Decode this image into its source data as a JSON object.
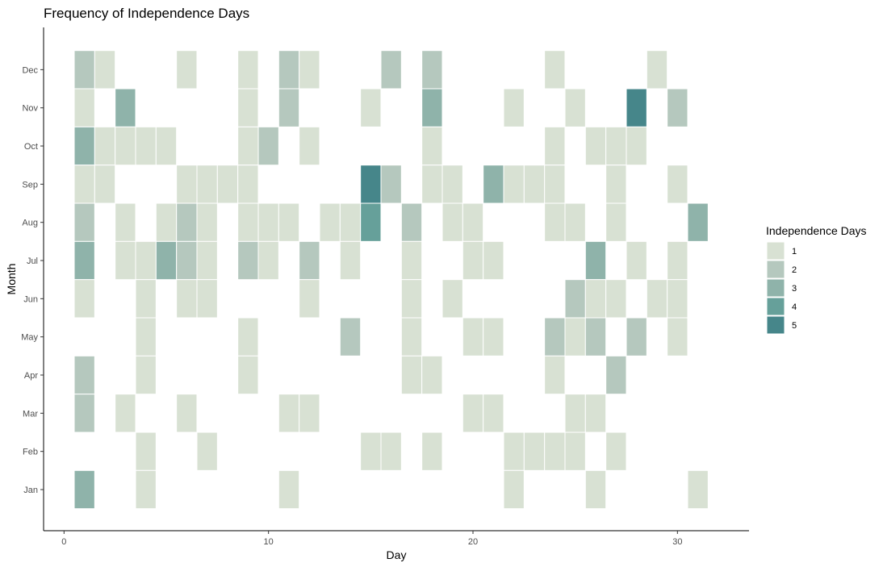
{
  "chart_data": {
    "type": "heatmap",
    "title": "Frequency of Independence Days",
    "xlabel": "Day",
    "ylabel": "Month",
    "xlim": [
      -1,
      33.5
    ],
    "x_ticks": [
      0,
      10,
      20,
      30
    ],
    "months": [
      "Jan",
      "Feb",
      "Mar",
      "Apr",
      "May",
      "Jun",
      "Jul",
      "Aug",
      "Sep",
      "Oct",
      "Nov",
      "Dec"
    ],
    "legend": {
      "title": "Independence Days",
      "placement": "right",
      "levels": [
        1,
        2,
        3,
        4,
        5
      ],
      "colors": [
        "#d8e1d3",
        "#b5c8be",
        "#8fb3aa",
        "#66a09a",
        "#46868a"
      ]
    },
    "cells": [
      {
        "month": "Dec",
        "day": 1,
        "count": 2
      },
      {
        "month": "Dec",
        "day": 2,
        "count": 1
      },
      {
        "month": "Dec",
        "day": 6,
        "count": 1
      },
      {
        "month": "Dec",
        "day": 9,
        "count": 1
      },
      {
        "month": "Dec",
        "day": 11,
        "count": 2
      },
      {
        "month": "Dec",
        "day": 12,
        "count": 1
      },
      {
        "month": "Dec",
        "day": 16,
        "count": 2
      },
      {
        "month": "Dec",
        "day": 18,
        "count": 2
      },
      {
        "month": "Dec",
        "day": 24,
        "count": 1
      },
      {
        "month": "Dec",
        "day": 29,
        "count": 1
      },
      {
        "month": "Nov",
        "day": 1,
        "count": 1
      },
      {
        "month": "Nov",
        "day": 3,
        "count": 3
      },
      {
        "month": "Nov",
        "day": 9,
        "count": 1
      },
      {
        "month": "Nov",
        "day": 11,
        "count": 2
      },
      {
        "month": "Nov",
        "day": 15,
        "count": 1
      },
      {
        "month": "Nov",
        "day": 18,
        "count": 3
      },
      {
        "month": "Nov",
        "day": 22,
        "count": 1
      },
      {
        "month": "Nov",
        "day": 25,
        "count": 1
      },
      {
        "month": "Nov",
        "day": 28,
        "count": 5
      },
      {
        "month": "Nov",
        "day": 30,
        "count": 2
      },
      {
        "month": "Oct",
        "day": 1,
        "count": 3
      },
      {
        "month": "Oct",
        "day": 2,
        "count": 1
      },
      {
        "month": "Oct",
        "day": 3,
        "count": 1
      },
      {
        "month": "Oct",
        "day": 4,
        "count": 1
      },
      {
        "month": "Oct",
        "day": 5,
        "count": 1
      },
      {
        "month": "Oct",
        "day": 9,
        "count": 1
      },
      {
        "month": "Oct",
        "day": 10,
        "count": 2
      },
      {
        "month": "Oct",
        "day": 12,
        "count": 1
      },
      {
        "month": "Oct",
        "day": 18,
        "count": 1
      },
      {
        "month": "Oct",
        "day": 24,
        "count": 1
      },
      {
        "month": "Oct",
        "day": 26,
        "count": 1
      },
      {
        "month": "Oct",
        "day": 27,
        "count": 1
      },
      {
        "month": "Oct",
        "day": 28,
        "count": 1
      },
      {
        "month": "Sep",
        "day": 1,
        "count": 1
      },
      {
        "month": "Sep",
        "day": 2,
        "count": 1
      },
      {
        "month": "Sep",
        "day": 6,
        "count": 1
      },
      {
        "month": "Sep",
        "day": 7,
        "count": 1
      },
      {
        "month": "Sep",
        "day": 8,
        "count": 1
      },
      {
        "month": "Sep",
        "day": 9,
        "count": 1
      },
      {
        "month": "Sep",
        "day": 15,
        "count": 5
      },
      {
        "month": "Sep",
        "day": 16,
        "count": 2
      },
      {
        "month": "Sep",
        "day": 18,
        "count": 1
      },
      {
        "month": "Sep",
        "day": 19,
        "count": 1
      },
      {
        "month": "Sep",
        "day": 21,
        "count": 3
      },
      {
        "month": "Sep",
        "day": 22,
        "count": 1
      },
      {
        "month": "Sep",
        "day": 23,
        "count": 1
      },
      {
        "month": "Sep",
        "day": 24,
        "count": 1
      },
      {
        "month": "Sep",
        "day": 27,
        "count": 1
      },
      {
        "month": "Sep",
        "day": 30,
        "count": 1
      },
      {
        "month": "Aug",
        "day": 1,
        "count": 2
      },
      {
        "month": "Aug",
        "day": 3,
        "count": 1
      },
      {
        "month": "Aug",
        "day": 5,
        "count": 1
      },
      {
        "month": "Aug",
        "day": 6,
        "count": 2
      },
      {
        "month": "Aug",
        "day": 7,
        "count": 1
      },
      {
        "month": "Aug",
        "day": 9,
        "count": 1
      },
      {
        "month": "Aug",
        "day": 10,
        "count": 1
      },
      {
        "month": "Aug",
        "day": 11,
        "count": 1
      },
      {
        "month": "Aug",
        "day": 13,
        "count": 1
      },
      {
        "month": "Aug",
        "day": 14,
        "count": 1
      },
      {
        "month": "Aug",
        "day": 15,
        "count": 4
      },
      {
        "month": "Aug",
        "day": 17,
        "count": 2
      },
      {
        "month": "Aug",
        "day": 19,
        "count": 1
      },
      {
        "month": "Aug",
        "day": 20,
        "count": 1
      },
      {
        "month": "Aug",
        "day": 24,
        "count": 1
      },
      {
        "month": "Aug",
        "day": 25,
        "count": 1
      },
      {
        "month": "Aug",
        "day": 27,
        "count": 1
      },
      {
        "month": "Aug",
        "day": 31,
        "count": 3
      },
      {
        "month": "Jul",
        "day": 1,
        "count": 3
      },
      {
        "month": "Jul",
        "day": 3,
        "count": 1
      },
      {
        "month": "Jul",
        "day": 4,
        "count": 1
      },
      {
        "month": "Jul",
        "day": 5,
        "count": 3
      },
      {
        "month": "Jul",
        "day": 6,
        "count": 2
      },
      {
        "month": "Jul",
        "day": 7,
        "count": 1
      },
      {
        "month": "Jul",
        "day": 9,
        "count": 2
      },
      {
        "month": "Jul",
        "day": 10,
        "count": 1
      },
      {
        "month": "Jul",
        "day": 12,
        "count": 2
      },
      {
        "month": "Jul",
        "day": 14,
        "count": 1
      },
      {
        "month": "Jul",
        "day": 17,
        "count": 1
      },
      {
        "month": "Jul",
        "day": 20,
        "count": 1
      },
      {
        "month": "Jul",
        "day": 21,
        "count": 1
      },
      {
        "month": "Jul",
        "day": 26,
        "count": 3
      },
      {
        "month": "Jul",
        "day": 28,
        "count": 1
      },
      {
        "month": "Jul",
        "day": 30,
        "count": 1
      },
      {
        "month": "Jun",
        "day": 1,
        "count": 1
      },
      {
        "month": "Jun",
        "day": 4,
        "count": 1
      },
      {
        "month": "Jun",
        "day": 6,
        "count": 1
      },
      {
        "month": "Jun",
        "day": 7,
        "count": 1
      },
      {
        "month": "Jun",
        "day": 12,
        "count": 1
      },
      {
        "month": "Jun",
        "day": 17,
        "count": 1
      },
      {
        "month": "Jun",
        "day": 19,
        "count": 1
      },
      {
        "month": "Jun",
        "day": 25,
        "count": 2
      },
      {
        "month": "Jun",
        "day": 26,
        "count": 1
      },
      {
        "month": "Jun",
        "day": 27,
        "count": 1
      },
      {
        "month": "Jun",
        "day": 29,
        "count": 1
      },
      {
        "month": "Jun",
        "day": 30,
        "count": 1
      },
      {
        "month": "May",
        "day": 4,
        "count": 1
      },
      {
        "month": "May",
        "day": 9,
        "count": 1
      },
      {
        "month": "May",
        "day": 14,
        "count": 2
      },
      {
        "month": "May",
        "day": 17,
        "count": 1
      },
      {
        "month": "May",
        "day": 20,
        "count": 1
      },
      {
        "month": "May",
        "day": 21,
        "count": 1
      },
      {
        "month": "May",
        "day": 24,
        "count": 2
      },
      {
        "month": "May",
        "day": 25,
        "count": 1
      },
      {
        "month": "May",
        "day": 26,
        "count": 2
      },
      {
        "month": "May",
        "day": 28,
        "count": 2
      },
      {
        "month": "May",
        "day": 30,
        "count": 1
      },
      {
        "month": "Apr",
        "day": 1,
        "count": 2
      },
      {
        "month": "Apr",
        "day": 4,
        "count": 1
      },
      {
        "month": "Apr",
        "day": 9,
        "count": 1
      },
      {
        "month": "Apr",
        "day": 17,
        "count": 1
      },
      {
        "month": "Apr",
        "day": 18,
        "count": 1
      },
      {
        "month": "Apr",
        "day": 24,
        "count": 1
      },
      {
        "month": "Apr",
        "day": 27,
        "count": 2
      },
      {
        "month": "Mar",
        "day": 1,
        "count": 2
      },
      {
        "month": "Mar",
        "day": 3,
        "count": 1
      },
      {
        "month": "Mar",
        "day": 6,
        "count": 1
      },
      {
        "month": "Mar",
        "day": 11,
        "count": 1
      },
      {
        "month": "Mar",
        "day": 12,
        "count": 1
      },
      {
        "month": "Mar",
        "day": 20,
        "count": 1
      },
      {
        "month": "Mar",
        "day": 21,
        "count": 1
      },
      {
        "month": "Mar",
        "day": 25,
        "count": 1
      },
      {
        "month": "Mar",
        "day": 26,
        "count": 1
      },
      {
        "month": "Feb",
        "day": 4,
        "count": 1
      },
      {
        "month": "Feb",
        "day": 7,
        "count": 1
      },
      {
        "month": "Feb",
        "day": 15,
        "count": 1
      },
      {
        "month": "Feb",
        "day": 16,
        "count": 1
      },
      {
        "month": "Feb",
        "day": 18,
        "count": 1
      },
      {
        "month": "Feb",
        "day": 22,
        "count": 1
      },
      {
        "month": "Feb",
        "day": 23,
        "count": 1
      },
      {
        "month": "Feb",
        "day": 24,
        "count": 1
      },
      {
        "month": "Feb",
        "day": 25,
        "count": 1
      },
      {
        "month": "Feb",
        "day": 27,
        "count": 1
      },
      {
        "month": "Jan",
        "day": 1,
        "count": 3
      },
      {
        "month": "Jan",
        "day": 4,
        "count": 1
      },
      {
        "month": "Jan",
        "day": 11,
        "count": 1
      },
      {
        "month": "Jan",
        "day": 22,
        "count": 1
      },
      {
        "month": "Jan",
        "day": 26,
        "count": 1
      },
      {
        "month": "Jan",
        "day": 31,
        "count": 1
      }
    ]
  }
}
